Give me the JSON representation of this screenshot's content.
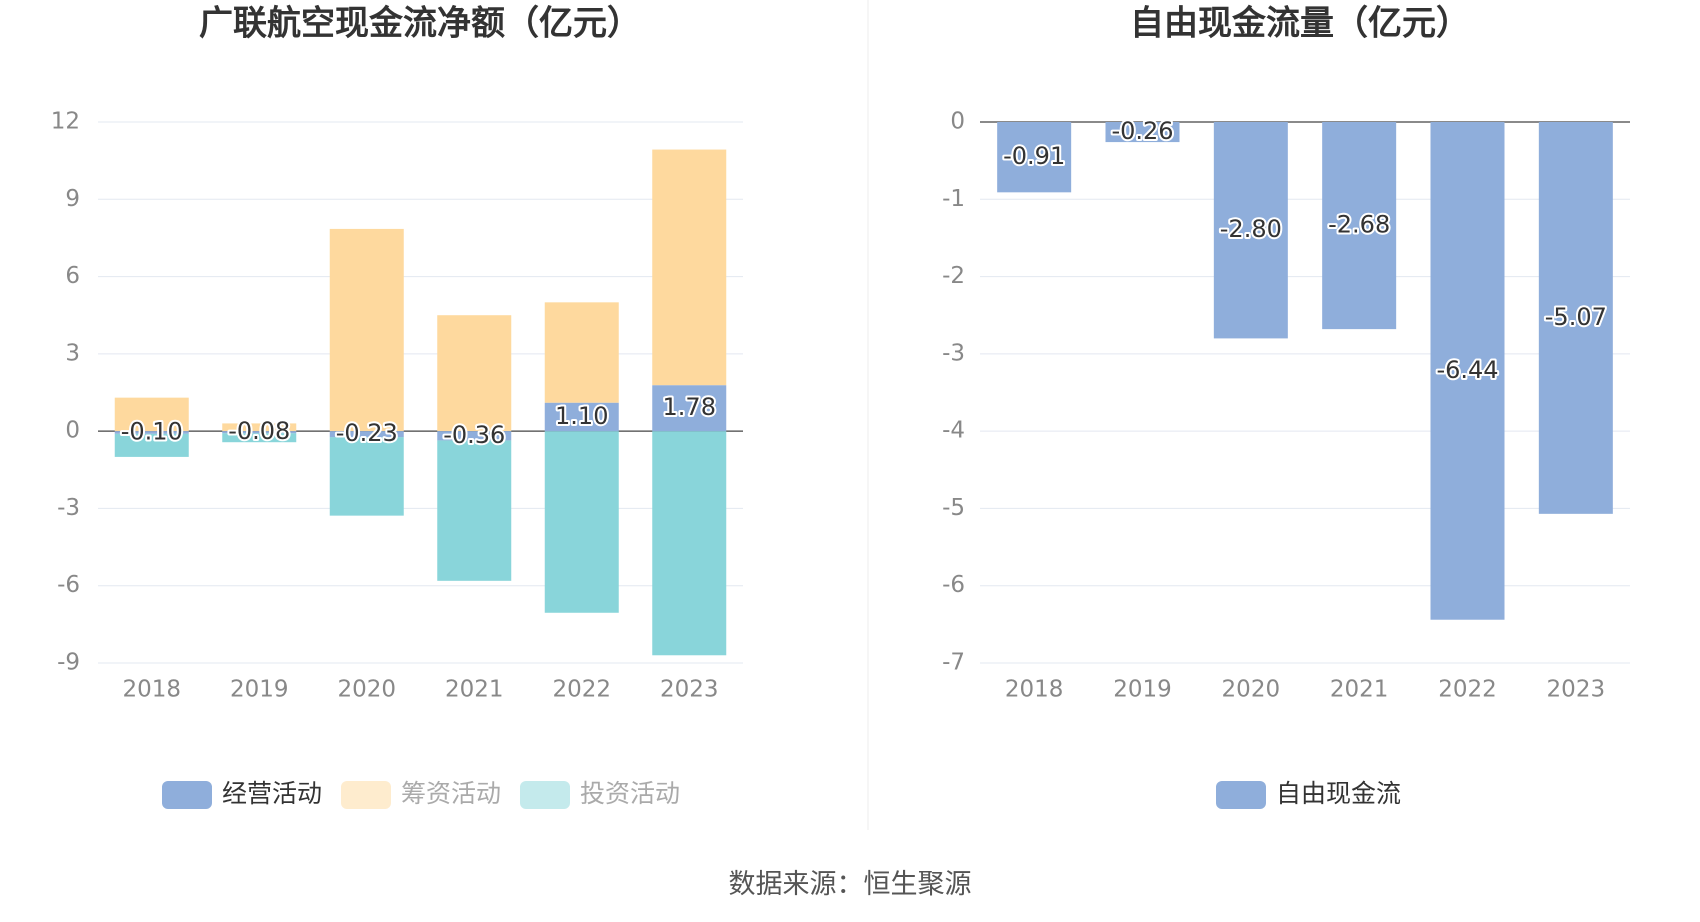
{
  "colors": {
    "operating": "#8FAEDB",
    "financing": "#FED99E",
    "investing": "#89D5DA",
    "free_cash_flow": "#8FAEDB"
  },
  "source": "数据来源：恒生聚源",
  "chart_data": [
    {
      "type": "bar",
      "stacked": true,
      "title": "广联航空现金流净额（亿元）",
      "categories": [
        "2018",
        "2019",
        "2020",
        "2021",
        "2022",
        "2023"
      ],
      "ylim": [
        -9,
        12
      ],
      "yticks": [
        12,
        9,
        6,
        3,
        0,
        -3,
        -6,
        -9
      ],
      "grid": true,
      "legend_position": "bottom",
      "series": [
        {
          "name": "经营活动",
          "color": "operating",
          "values": [
            -0.1,
            -0.08,
            -0.23,
            -0.36,
            1.1,
            1.78
          ]
        },
        {
          "name": "筹资活动",
          "color": "financing",
          "values": [
            1.3,
            0.3,
            7.85,
            4.5,
            3.9,
            9.15
          ]
        },
        {
          "name": "投资活动",
          "color": "investing",
          "values": [
            -0.9,
            -0.35,
            -3.05,
            -5.45,
            -7.05,
            -8.7
          ]
        }
      ],
      "data_labels": [
        "-0.10",
        "-0.08",
        "-0.23",
        "-0.36",
        "1.10",
        "1.78"
      ],
      "legend_faded": [
        false,
        true,
        true
      ]
    },
    {
      "type": "bar",
      "title": "自由现金流量（亿元）",
      "categories": [
        "2018",
        "2019",
        "2020",
        "2021",
        "2022",
        "2023"
      ],
      "ylim": [
        -7,
        0
      ],
      "yticks": [
        0,
        -1,
        -2,
        -3,
        -4,
        -5,
        -6,
        -7
      ],
      "grid": true,
      "legend_position": "bottom",
      "series": [
        {
          "name": "自由现金流",
          "color": "free_cash_flow",
          "values": [
            -0.91,
            -0.26,
            -2.8,
            -2.68,
            -6.44,
            -5.07
          ]
        }
      ],
      "data_labels": [
        "-0.91",
        "-0.26",
        "-2.80",
        "-2.68",
        "-6.44",
        "-5.07"
      ],
      "legend_faded": [
        false
      ]
    }
  ]
}
